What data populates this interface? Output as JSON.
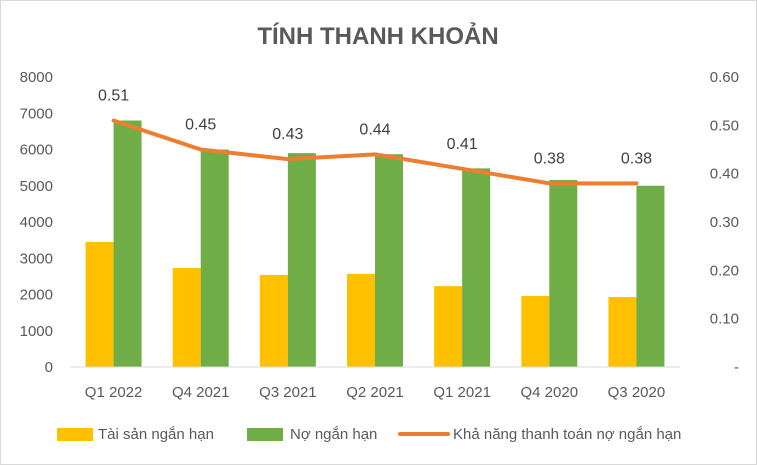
{
  "chart_data": {
    "type": "bar",
    "title": "TÍNH THANH KHOẢN",
    "categories": [
      "Q1 2022",
      "Q4 2021",
      "Q3 2021",
      "Q2 2021",
      "Q1 2021",
      "Q4 2020",
      "Q3 2020"
    ],
    "series": [
      {
        "name": "Tài sản ngắn hạn",
        "type": "bar",
        "axis": "left",
        "color": "#FFC000",
        "values": [
          3450,
          2730,
          2540,
          2570,
          2230,
          1960,
          1930
        ]
      },
      {
        "name": "Nợ ngắn hạn",
        "type": "bar",
        "axis": "left",
        "color": "#70AD47",
        "values": [
          6800,
          6000,
          5900,
          5870,
          5480,
          5160,
          5000
        ]
      },
      {
        "name": "Khả năng thanh toán nợ ngắn hạn",
        "type": "line",
        "axis": "right",
        "color": "#ED7D31",
        "values": [
          0.51,
          0.45,
          0.43,
          0.44,
          0.41,
          0.38,
          0.38
        ],
        "labels": [
          "0.51",
          "0.45",
          "0.43",
          "0.44",
          "0.41",
          "0.38",
          "0.38"
        ]
      }
    ],
    "y_left": {
      "ylim": [
        0,
        8000
      ],
      "ticks": [
        "0",
        "1000",
        "2000",
        "3000",
        "4000",
        "5000",
        "6000",
        "7000",
        "8000"
      ]
    },
    "y_right": {
      "ylim": [
        0,
        0.6
      ],
      "ticks": [
        "-",
        "0.10",
        "0.20",
        "0.30",
        "0.40",
        "0.50",
        "0.60"
      ]
    },
    "grid": false,
    "legend": "bottom"
  }
}
